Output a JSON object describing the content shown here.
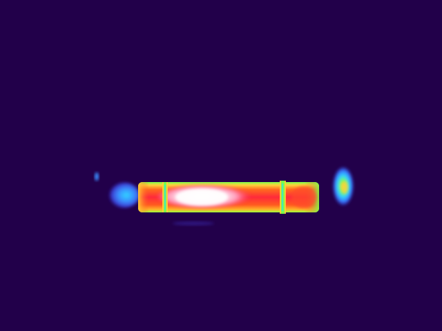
{
  "scene": {
    "kind": "thermal-image",
    "subject": "cylindrical-heated-tube",
    "palette": "rainbow-iron",
    "colors": {
      "background": "#22004a",
      "coolest": "#2a1a9a",
      "cool": "#3a7bff",
      "mid": "#31d4ff",
      "warm": "#7cff4a",
      "warmer": "#ffd23a",
      "hot": "#ff5a1f",
      "hotter": "#ff2a3a",
      "hottest": "#ffffff"
    },
    "elements": [
      {
        "name": "left-end-plume",
        "temperature_level": "cool"
      },
      {
        "name": "left-small-speck",
        "temperature_level": "cool"
      },
      {
        "name": "tube-body",
        "temperature_level": "hot"
      },
      {
        "name": "hotspot-core",
        "temperature_level": "hottest"
      },
      {
        "name": "left-clamp-ring",
        "temperature_level": "warm"
      },
      {
        "name": "right-clamp-ring",
        "temperature_level": "warm"
      },
      {
        "name": "right-end-plume",
        "temperature_level": "cool"
      }
    ]
  }
}
